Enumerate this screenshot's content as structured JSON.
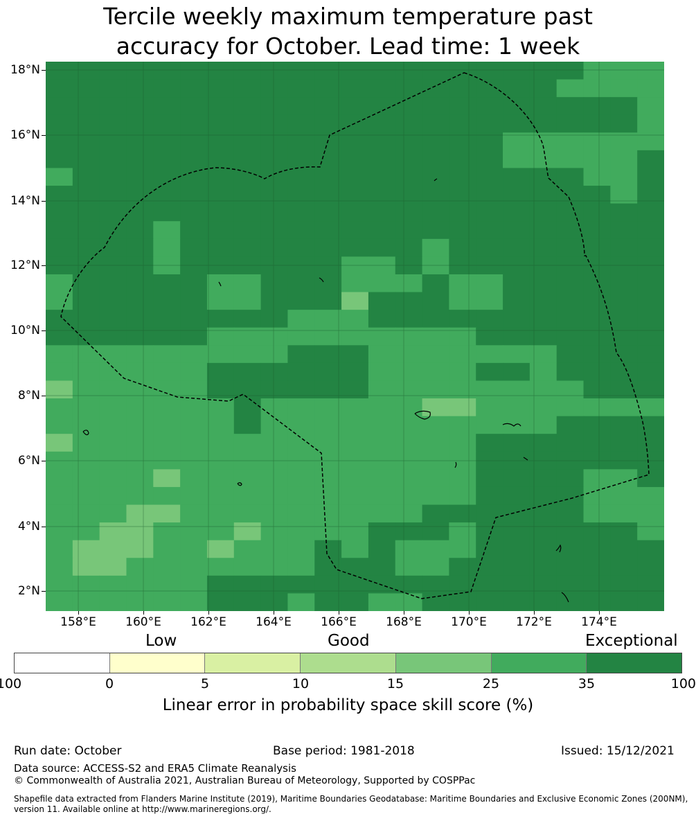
{
  "title_line1": "Tercile weekly maximum temperature past",
  "title_line2": "accuracy for October. Lead time: 1 week",
  "map": {
    "lon_range": [
      157,
      176
    ],
    "lat_range": [
      1.4,
      18.4
    ],
    "grid_resolution_deg": 0.8333,
    "lat_ticks": [
      "18°N",
      "16°N",
      "14°N",
      "12°N",
      "10°N",
      "8°N",
      "6°N",
      "4°N",
      "2°N"
    ],
    "lon_ticks": [
      "158°E",
      "160°E",
      "162°E",
      "164°E",
      "166°E",
      "168°E",
      "170°E",
      "172°E",
      "174°E"
    ],
    "boundary": "dashed EEZ outline",
    "category_colors": [
      "#ffffff",
      "#ffffcc",
      "#d9f0a3",
      "#addd8e",
      "#78c679",
      "#41ab5d",
      "#238443"
    ]
  },
  "colorbar": {
    "category_labels": [
      "Low",
      "Good",
      "Exceptional"
    ],
    "tick_labels": [
      "-100",
      "0",
      "5",
      "10",
      "15",
      "25",
      "35",
      "100"
    ],
    "colors": [
      "#ffffff",
      "#ffffcc",
      "#d9f0a3",
      "#addd8e",
      "#78c679",
      "#41ab5d",
      "#238443"
    ],
    "title": "Linear error in probability space skill score (%)"
  },
  "footer": {
    "run_date": "Run date: October",
    "base_period": "Base period: 1981-2018",
    "issued": "Issued: 15/12/2021",
    "data_source": "Data source: ACCESS-S2 and ERA5 Climate Reanalysis",
    "copyright": "© Commonwealth of Australia 2021, Australian Bureau of Meteorology, Supported by COSPPac",
    "shapefile_line1": "Shapefile data extracted from Flanders Marine Institute (2019), Maritime Boundaries Geodatabase: Maritime Boundaries and Exclusive Economic Zones (200NM),",
    "shapefile_line2": "version 11. Available online at http://www.marineregions.org/."
  }
}
